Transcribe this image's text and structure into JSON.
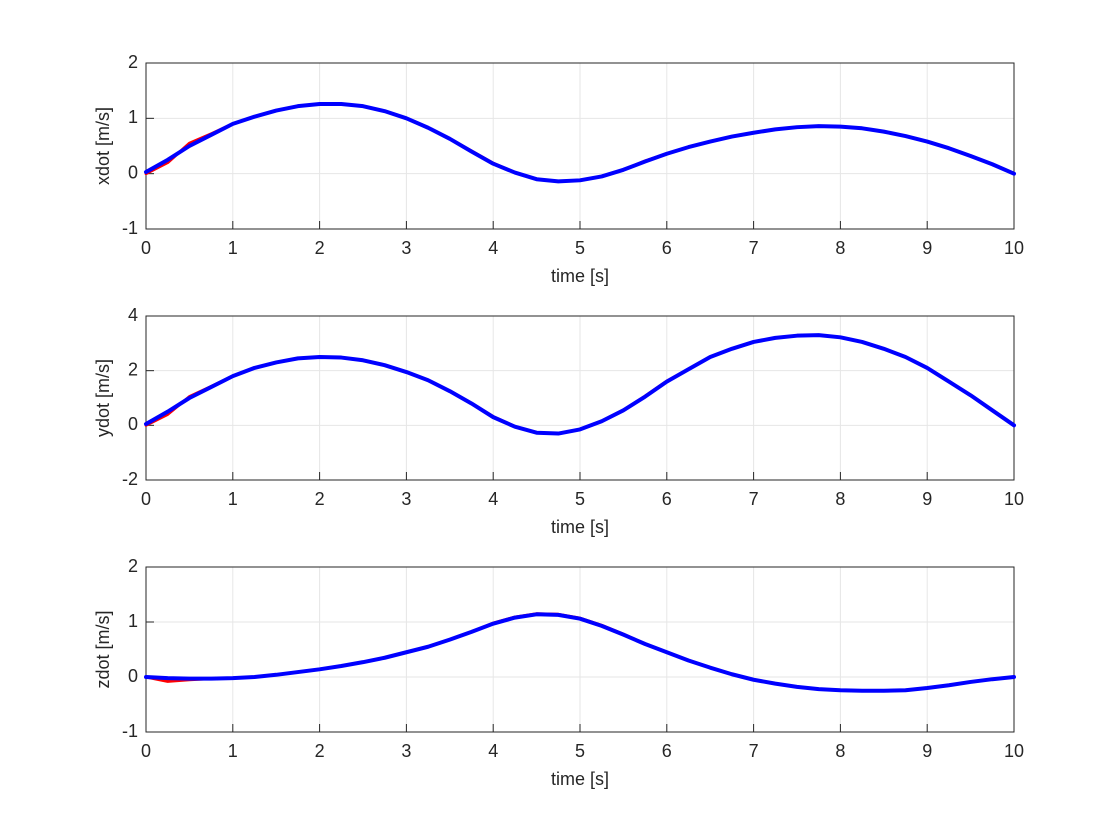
{
  "chart_data": [
    {
      "type": "line",
      "ylabel": "xdot [m/s]",
      "xlabel": "time [s]",
      "x": [
        0,
        0.25,
        0.5,
        0.75,
        1,
        1.25,
        1.5,
        1.75,
        2,
        2.25,
        2.5,
        2.75,
        3,
        3.25,
        3.5,
        3.75,
        4,
        4.25,
        4.5,
        4.75,
        5,
        5.25,
        5.5,
        5.75,
        6,
        6.25,
        6.5,
        6.75,
        7,
        7.25,
        7.5,
        7.75,
        8,
        8.25,
        8.5,
        8.75,
        9,
        9.25,
        9.5,
        9.75,
        10
      ],
      "series": [
        {
          "color": "#ff0000",
          "values": [
            0,
            0.2,
            0.55,
            0.72,
            0.9,
            1.03,
            1.14,
            1.22,
            1.26,
            1.26,
            1.22,
            1.13,
            1.0,
            0.83,
            0.63,
            0.41,
            0.19,
            0.02,
            -0.1,
            -0.14,
            -0.12,
            -0.05,
            0.07,
            0.23,
            0.36,
            0.48,
            0.58,
            0.67,
            0.74,
            0.8,
            0.84,
            0.86,
            0.85,
            0.82,
            0.76,
            0.68,
            0.58,
            0.46,
            0.32,
            0.17,
            0
          ]
        },
        {
          "color": "#0000ff",
          "values": [
            0.03,
            0.25,
            0.5,
            0.7,
            0.9,
            1.03,
            1.14,
            1.22,
            1.26,
            1.26,
            1.22,
            1.13,
            1.0,
            0.83,
            0.63,
            0.4,
            0.18,
            0.02,
            -0.1,
            -0.14,
            -0.12,
            -0.05,
            0.07,
            0.22,
            0.36,
            0.48,
            0.58,
            0.67,
            0.74,
            0.8,
            0.84,
            0.86,
            0.85,
            0.82,
            0.76,
            0.68,
            0.58,
            0.46,
            0.32,
            0.17,
            0
          ]
        }
      ],
      "xlim": [
        0,
        10
      ],
      "xticks": [
        0,
        1,
        2,
        3,
        4,
        5,
        6,
        7,
        8,
        9,
        10
      ],
      "ylim": [
        -1,
        2
      ],
      "yticks": [
        -1,
        0,
        1,
        2
      ],
      "grid": true
    },
    {
      "type": "line",
      "ylabel": "ydot [m/s]",
      "xlabel": "time [s]",
      "x": [
        0,
        0.25,
        0.5,
        0.75,
        1,
        1.25,
        1.5,
        1.75,
        2,
        2.25,
        2.5,
        2.75,
        3,
        3.25,
        3.5,
        3.75,
        4,
        4.25,
        4.5,
        4.75,
        5,
        5.25,
        5.5,
        5.75,
        6,
        6.25,
        6.5,
        6.75,
        7,
        7.25,
        7.5,
        7.75,
        8,
        8.25,
        8.5,
        8.75,
        9,
        9.25,
        9.5,
        9.75,
        10
      ],
      "series": [
        {
          "color": "#ff0000",
          "values": [
            0,
            0.4,
            1.05,
            1.42,
            1.8,
            2.1,
            2.3,
            2.45,
            2.5,
            2.48,
            2.38,
            2.2,
            1.95,
            1.65,
            1.25,
            0.8,
            0.32,
            -0.04,
            -0.27,
            -0.3,
            -0.15,
            0.15,
            0.55,
            1.07,
            1.62,
            2.05,
            2.5,
            2.8,
            3.05,
            3.2,
            3.28,
            3.3,
            3.22,
            3.05,
            2.8,
            2.5,
            2.1,
            1.6,
            1.1,
            0.55,
            0
          ]
        },
        {
          "color": "#0000ff",
          "values": [
            0.05,
            0.5,
            1.0,
            1.4,
            1.8,
            2.1,
            2.3,
            2.45,
            2.5,
            2.48,
            2.38,
            2.2,
            1.95,
            1.65,
            1.25,
            0.8,
            0.3,
            -0.05,
            -0.27,
            -0.3,
            -0.15,
            0.15,
            0.55,
            1.05,
            1.6,
            2.05,
            2.5,
            2.8,
            3.05,
            3.2,
            3.28,
            3.3,
            3.22,
            3.05,
            2.8,
            2.5,
            2.1,
            1.6,
            1.1,
            0.55,
            0
          ]
        }
      ],
      "xlim": [
        0,
        10
      ],
      "xticks": [
        0,
        1,
        2,
        3,
        4,
        5,
        6,
        7,
        8,
        9,
        10
      ],
      "ylim": [
        -2,
        4
      ],
      "yticks": [
        -2,
        0,
        2,
        4
      ],
      "grid": true
    },
    {
      "type": "line",
      "ylabel": "zdot [m/s]",
      "xlabel": "time [s]",
      "x": [
        0,
        0.25,
        0.5,
        0.75,
        1,
        1.25,
        1.5,
        1.75,
        2,
        2.25,
        2.5,
        2.75,
        3,
        3.25,
        3.5,
        3.75,
        4,
        4.25,
        4.5,
        4.75,
        5,
        5.25,
        5.5,
        5.75,
        6,
        6.25,
        6.5,
        6.75,
        7,
        7.25,
        7.5,
        7.75,
        8,
        8.25,
        8.5,
        8.75,
        9,
        9.25,
        9.5,
        9.75,
        10
      ],
      "series": [
        {
          "color": "#ff0000",
          "values": [
            0,
            -0.08,
            -0.05,
            -0.03,
            -0.02,
            0,
            0.04,
            0.09,
            0.14,
            0.2,
            0.27,
            0.35,
            0.45,
            0.55,
            0.68,
            0.82,
            0.98,
            1.09,
            1.15,
            1.14,
            1.07,
            0.94,
            0.78,
            0.6,
            0.45,
            0.3,
            0.17,
            0.05,
            -0.05,
            -0.12,
            -0.18,
            -0.22,
            -0.24,
            -0.25,
            -0.25,
            -0.24,
            -0.2,
            -0.15,
            -0.09,
            -0.04,
            0
          ]
        },
        {
          "color": "#0000ff",
          "values": [
            0,
            -0.02,
            -0.03,
            -0.03,
            -0.02,
            0,
            0.04,
            0.09,
            0.14,
            0.2,
            0.27,
            0.35,
            0.45,
            0.55,
            0.68,
            0.82,
            0.97,
            1.08,
            1.14,
            1.13,
            1.06,
            0.93,
            0.77,
            0.6,
            0.45,
            0.3,
            0.17,
            0.05,
            -0.05,
            -0.12,
            -0.18,
            -0.22,
            -0.24,
            -0.25,
            -0.25,
            -0.24,
            -0.2,
            -0.15,
            -0.09,
            -0.04,
            0
          ]
        }
      ],
      "xlim": [
        0,
        10
      ],
      "xticks": [
        0,
        1,
        2,
        3,
        4,
        5,
        6,
        7,
        8,
        9,
        10
      ],
      "ylim": [
        -1,
        2
      ],
      "yticks": [
        -1,
        0,
        1,
        2
      ],
      "grid": true
    }
  ]
}
